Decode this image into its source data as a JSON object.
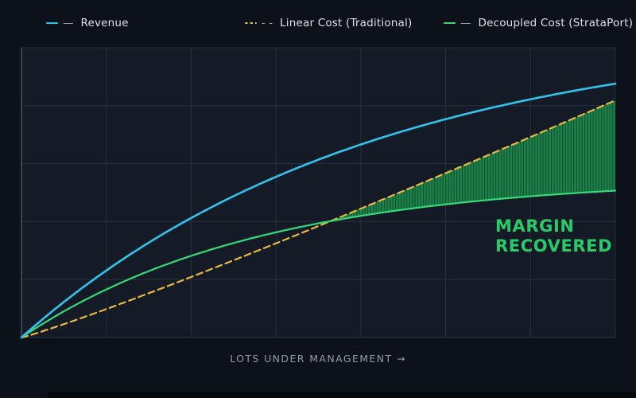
{
  "legend": {
    "items": [
      {
        "name": "revenue",
        "prefix": "—",
        "label": "Revenue",
        "color": "#31c3ec",
        "style": "solid"
      },
      {
        "name": "linear-cost",
        "prefix": "- -",
        "label": "Linear Cost (Traditional)",
        "color": "#e8b843",
        "style": "dashed"
      },
      {
        "name": "decoupled-cost",
        "prefix": "—",
        "label": "Decoupled Cost (StrataPort)",
        "color": "#36d978",
        "style": "solid"
      }
    ]
  },
  "annotation": {
    "line1": "MARGIN",
    "line2": "RECOVERED",
    "color": "#29cb68"
  },
  "colors": {
    "background": "#0d1119",
    "plot_bg": "#151b26",
    "grid": "#27303d",
    "spine": "#4a5565",
    "fill_base": "#1e8149",
    "fill_hatch_dark": "#115530",
    "legend_text": "#dce1e7",
    "legend_prefix": "#98a2b0",
    "xlabel_text": "#8f9aab"
  },
  "chart_data": {
    "type": "line",
    "title": "",
    "xlabel": "LOTS UNDER MANAGEMENT →",
    "ylabel": "",
    "axis_tick_labels_shown": false,
    "grid": true,
    "legend_position": "top",
    "x_range_normalized": [
      0,
      1
    ],
    "y_range_relative_units": [
      0,
      100
    ],
    "note": "No numeric tick labels are shown in the figure; values are relative units where Revenue at max lots = 100. values_at_gridlines are sampled at the 8 vertical gridlines.",
    "series": [
      {
        "name": "Revenue",
        "color": "#31c3ec",
        "style": "solid",
        "model": {
          "type": "exp_saturation",
          "k": 1.7,
          "amplitude": 122.3
        },
        "values_at_gridlines": [
          0,
          26.4,
          47.0,
          63.3,
          76.0,
          86.0,
          93.8,
          100.0
        ]
      },
      {
        "name": "Linear Cost (Traditional)",
        "color": "#e8b843",
        "style": "dashed",
        "model": {
          "type": "power",
          "p": 1.09,
          "amplitude": 93.4
        },
        "values_at_gridlines": [
          0,
          11.2,
          23.8,
          37.1,
          50.8,
          64.8,
          79.0,
          93.4
        ]
      },
      {
        "name": "Decoupled Cost (StrataPort)",
        "color": "#36d978",
        "style": "solid",
        "model": {
          "type": "exp_saturation",
          "k": 2.5,
          "amplitude": 63.0
        },
        "values_at_gridlines": [
          0,
          18.9,
          32.2,
          41.4,
          47.9,
          52.4,
          55.6,
          57.8
        ]
      }
    ],
    "fill_between": {
      "upper": "Linear Cost (Traditional)",
      "lower": "Decoupled Cost (StrataPort)",
      "from": "intersection",
      "to": 1,
      "label": "MARGIN RECOVERED",
      "hatch": "vertical"
    }
  }
}
